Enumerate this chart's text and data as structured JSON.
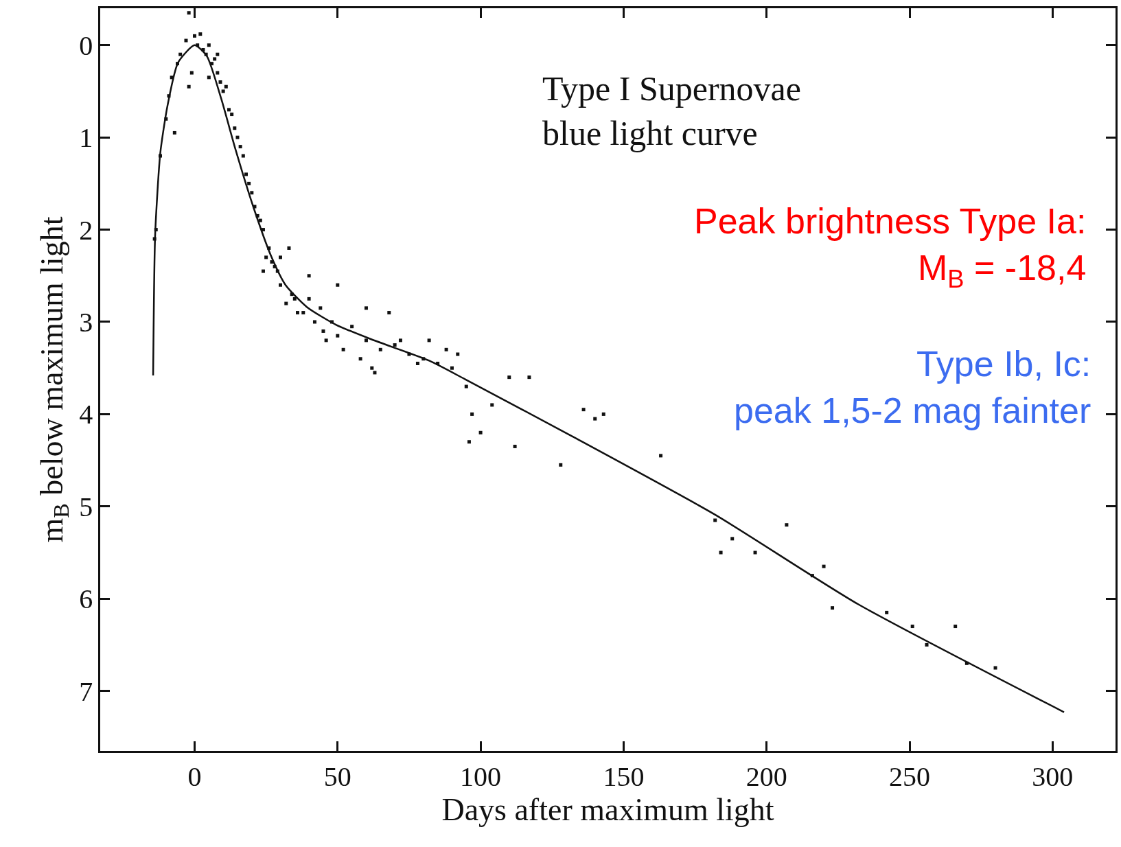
{
  "chart_data": {
    "type": "scatter",
    "xlabel": "Days after maximum light",
    "ylabel": "m$_{B}$ below maximum light",
    "xlim": [
      -33,
      322
    ],
    "xticks": [
      0,
      50,
      100,
      150,
      200,
      250,
      300
    ],
    "ylim": [
      7.65,
      -0.4
    ],
    "yticks": [
      0,
      1,
      2,
      3,
      4,
      5,
      6,
      7
    ],
    "grid": false,
    "annotations": [
      "Type I Supernovae\nblue light curve",
      "Peak brightness Type Ia:\nM$_{B}$ = -18,4",
      "Type Ib, Ic:\npeak 1,5-2 mag fainter"
    ],
    "series": [
      {
        "marker": "square",
        "color": "#111111",
        "x": [
          -14,
          -13.5,
          -12,
          -10,
          -8,
          -6,
          -5,
          -3,
          -2,
          -1,
          0,
          1,
          2,
          3,
          4,
          5,
          6,
          7,
          8,
          9,
          10,
          11,
          12,
          13,
          14,
          15,
          16,
          17,
          18,
          19,
          20,
          21,
          22,
          23,
          24,
          25,
          26,
          27,
          28,
          29,
          30,
          32,
          34,
          35,
          36,
          38,
          40,
          42,
          44,
          45,
          46,
          48,
          50,
          52,
          55,
          58,
          60,
          62,
          63,
          65,
          68,
          70,
          72,
          75,
          78,
          80,
          82,
          85,
          88,
          90,
          92,
          95,
          96,
          97,
          100,
          104,
          110,
          112,
          117,
          128,
          136,
          140,
          143,
          163,
          182,
          184,
          188,
          196,
          207,
          216,
          220,
          223,
          242,
          251,
          256,
          266,
          270,
          280,
          -2,
          -9,
          -7,
          5,
          8,
          24,
          30,
          33,
          40,
          50,
          60
        ],
        "values": [
          2.1,
          2.0,
          1.2,
          0.8,
          0.35,
          0.2,
          0.1,
          -0.05,
          -0.35,
          0.3,
          -0.1,
          0.0,
          -0.12,
          0.05,
          0.1,
          0.0,
          0.2,
          0.15,
          0.3,
          0.4,
          0.5,
          0.45,
          0.7,
          0.75,
          0.9,
          1.0,
          1.1,
          1.2,
          1.4,
          1.5,
          1.6,
          1.75,
          1.85,
          1.9,
          2.0,
          2.3,
          2.2,
          2.35,
          2.4,
          2.45,
          2.6,
          2.8,
          2.7,
          2.75,
          2.9,
          2.9,
          2.75,
          3.0,
          2.85,
          3.1,
          3.2,
          3.0,
          3.15,
          3.3,
          3.05,
          3.4,
          3.2,
          3.5,
          3.55,
          3.3,
          2.9,
          3.25,
          3.2,
          3.35,
          3.45,
          3.4,
          3.2,
          3.45,
          3.3,
          3.5,
          3.35,
          3.7,
          4.3,
          4.0,
          4.2,
          3.9,
          3.6,
          4.35,
          3.6,
          4.55,
          3.95,
          4.05,
          4.0,
          4.45,
          5.15,
          5.5,
          5.35,
          5.5,
          5.2,
          5.75,
          5.65,
          6.1,
          6.15,
          6.3,
          6.5,
          6.3,
          6.7,
          6.75,
          0.45,
          0.55,
          0.95,
          0.35,
          0.1,
          2.45,
          2.3,
          2.2,
          2.5,
          2.6,
          2.85
        ]
      },
      {
        "type": "line",
        "marker": "none",
        "color": "#111111",
        "x": [
          -14.5,
          -13.8,
          -12,
          -9.5,
          -5.8,
          0,
          4.3,
          9.3,
          14.3,
          20.5,
          26.8,
          31.8,
          39.3,
          49.4,
          61.9,
          82,
          94.5,
          132,
          182,
          232,
          304
        ],
        "values": [
          3.58,
          2.06,
          1.17,
          0.66,
          0.19,
          0,
          0.12,
          0.58,
          1.13,
          1.75,
          2.29,
          2.6,
          2.84,
          3.03,
          3.19,
          3.42,
          3.62,
          4.24,
          5.09,
          6.06,
          7.23
        ]
      }
    ]
  }
}
